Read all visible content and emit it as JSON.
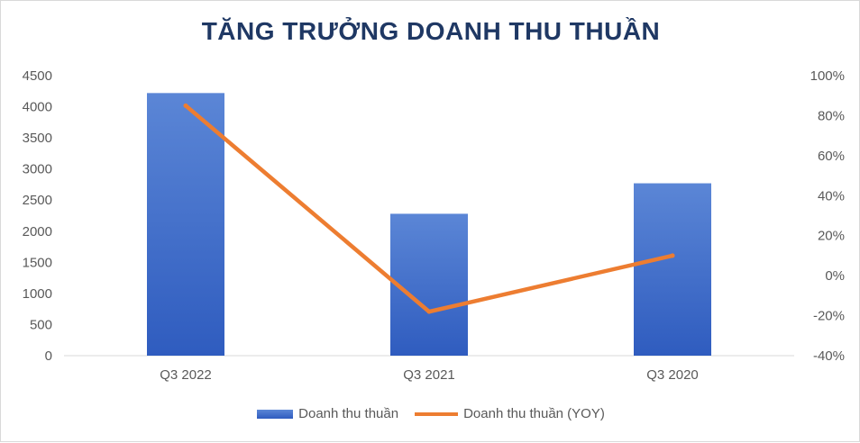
{
  "chart_data": {
    "type": "bar",
    "title": "TĂNG TRƯỞNG DOANH THU THUẦN",
    "categories": [
      "Q3 2022",
      "Q3 2021",
      "Q3 2020"
    ],
    "series": [
      {
        "name": "Doanh thu thuần",
        "type": "bar",
        "axis": "left",
        "values": [
          4220,
          2280,
          2770
        ],
        "color": "#4472c4"
      },
      {
        "name": "Doanh thu thuần (YOY)",
        "type": "line",
        "axis": "right",
        "values": [
          85,
          -18,
          10
        ],
        "color": "#ed7d31"
      }
    ],
    "y_left": {
      "min": 0,
      "max": 4500,
      "ticks": [
        "0",
        "500",
        "1000",
        "1500",
        "2000",
        "2500",
        "3000",
        "3500",
        "4000",
        "4500"
      ]
    },
    "y_right": {
      "min": -40,
      "max": 100,
      "ticks": [
        "-40%",
        "-20%",
        "0%",
        "20%",
        "40%",
        "60%",
        "80%",
        "100%"
      ]
    },
    "grid": false,
    "legend_position": "bottom"
  }
}
